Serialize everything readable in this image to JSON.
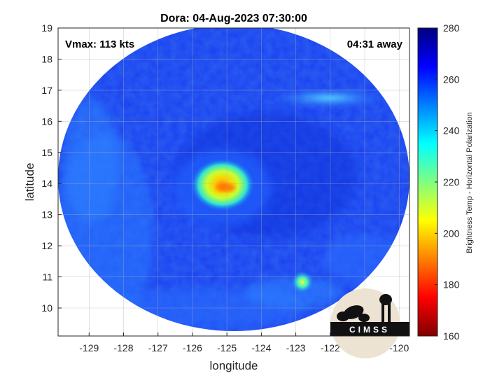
{
  "chart_data": {
    "type": "heatmap",
    "title": "Dora: 04-Aug-2023 07:30:00",
    "xlabel": "longitude",
    "ylabel": "latitude",
    "xlim": [
      -129.9,
      -119.7
    ],
    "ylim": [
      9.1,
      19.0
    ],
    "x_ticks": [
      -129,
      -128,
      -127,
      -126,
      -125,
      -124,
      -123,
      -122,
      -121,
      -120
    ],
    "y_ticks": [
      10,
      11,
      12,
      13,
      14,
      15,
      16,
      17,
      18,
      19
    ],
    "grid": true,
    "colorbar": {
      "label": "Brightness Temp - Horizontal Polarization",
      "range": [
        160,
        280
      ],
      "ticks": [
        160,
        180,
        200,
        220,
        240,
        260,
        280
      ],
      "colormap": "jet"
    },
    "annotations": {
      "vmax": "Vmax: 113 kts",
      "time_away": "04:31 away"
    },
    "storm_center": {
      "lon": -124.7,
      "lat": 13.95
    },
    "min_brightness_temp": 195,
    "background_brightness_temp": 264,
    "swath_center": {
      "lon": -124.78,
      "lat": 14.1
    }
  },
  "logo": {
    "text": "CIMSS"
  }
}
